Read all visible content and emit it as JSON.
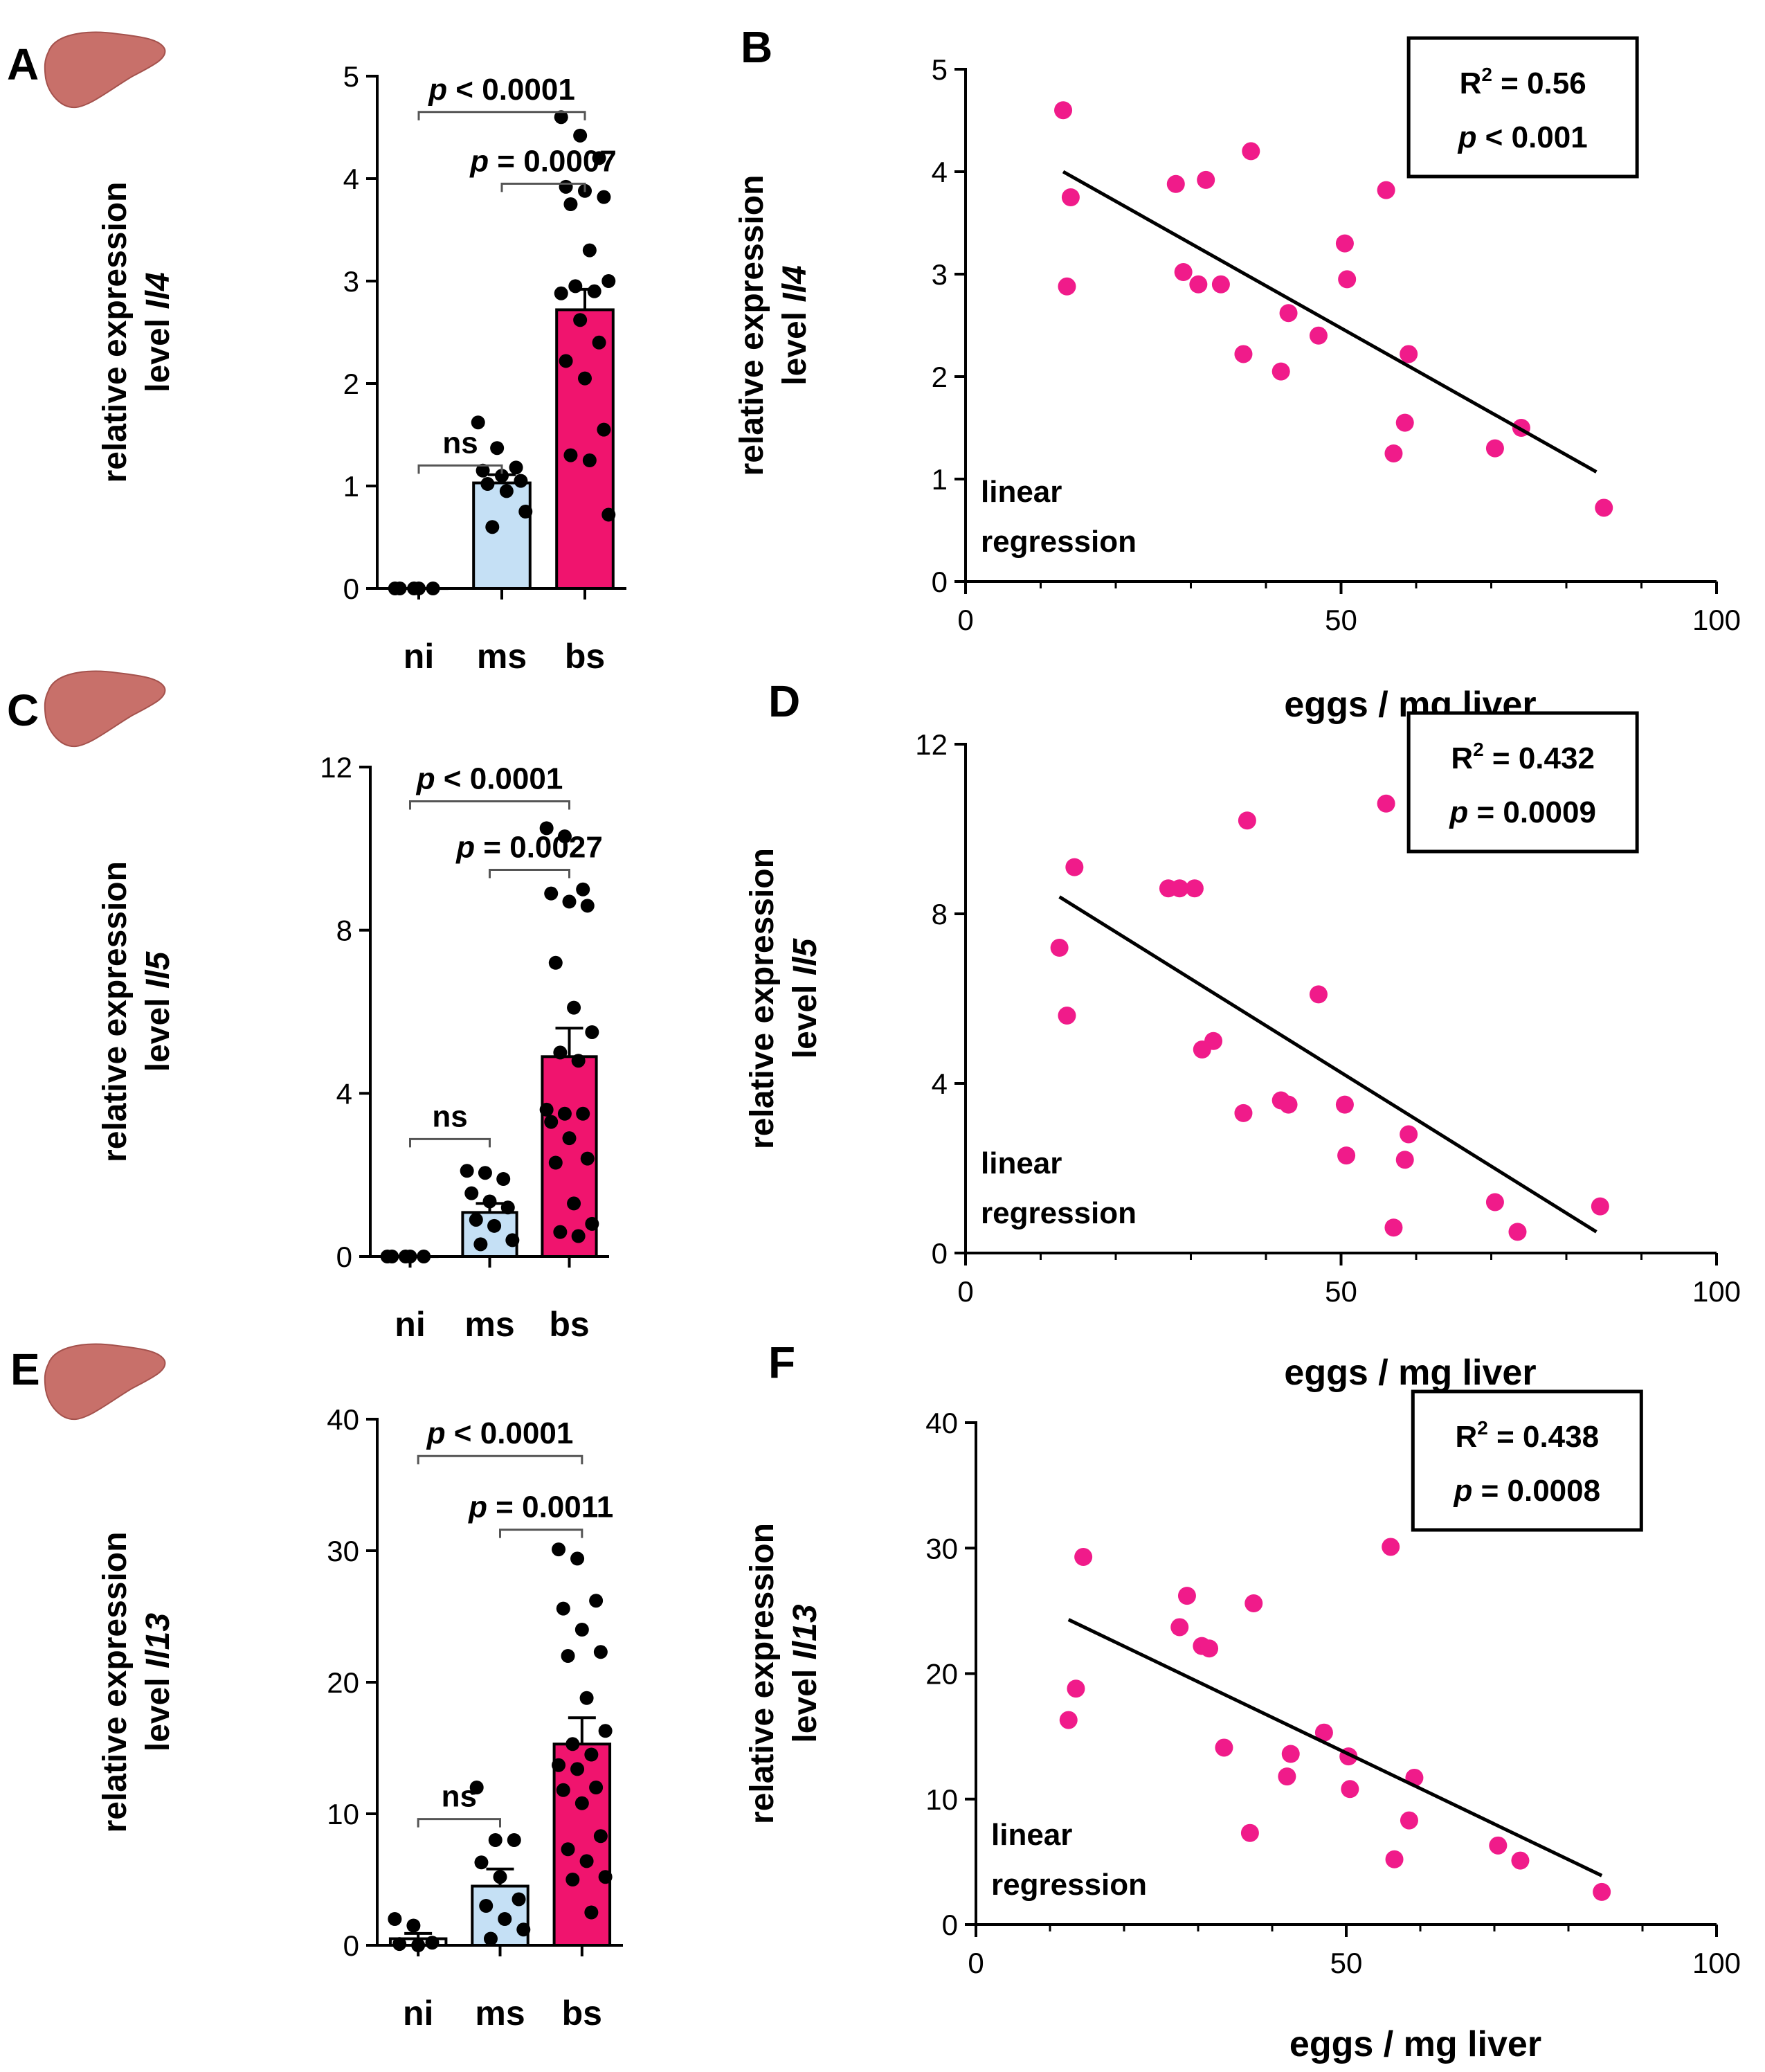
{
  "colors": {
    "ni": "#ffffff",
    "ms": "#c5e0f5",
    "bs": "#f0146e",
    "point": "#f01b8a",
    "liver": "#c8706a"
  },
  "icons": [
    "liver-icon"
  ],
  "chart_data": [
    {
      "panel": "A",
      "type": "bar",
      "ylabel": "relative expression level Il4",
      "ylabel_line1": "relative expression",
      "ylabel_line2_prefix": "level ",
      "ylabel_gene": "Il4",
      "categories": [
        "ni",
        "ms",
        "bs"
      ],
      "values": [
        0.0,
        1.03,
        2.72
      ],
      "sem": [
        0.0,
        0.08,
        0.2
      ],
      "ylim": [
        0,
        5
      ],
      "yticks": [
        0,
        1,
        2,
        3,
        4,
        5
      ],
      "points": [
        [
          0,
          0,
          0,
          0,
          0
        ],
        [
          1.62,
          1.37,
          1.18,
          1.15,
          1.1,
          1.05,
          1.02,
          0.95,
          0.75,
          0.6
        ],
        [
          4.6,
          4.42,
          4.2,
          3.92,
          3.88,
          3.82,
          3.75,
          3.3,
          3.0,
          2.95,
          2.9,
          2.88,
          2.62,
          2.4,
          2.22,
          2.05,
          1.55,
          1.3,
          1.25,
          0.72
        ]
      ],
      "comparisons": [
        {
          "from": 0,
          "to": 1,
          "label": "ns"
        },
        {
          "from": 1,
          "to": 2,
          "label_p": "p",
          "label_rest": " = 0.0007"
        },
        {
          "from": 0,
          "to": 2,
          "label_p": "p",
          "label_rest": " < 0.0001"
        }
      ]
    },
    {
      "panel": "B",
      "type": "scatter",
      "xlabel": "eggs / mg liver",
      "ylabel_line1": "relative expression",
      "ylabel_line2_prefix": "level ",
      "ylabel_gene": "Il4",
      "xlim": [
        0,
        100
      ],
      "ylim": [
        0,
        5
      ],
      "xticks": [
        0,
        50,
        100
      ],
      "yticks": [
        0,
        1,
        2,
        3,
        4,
        5
      ],
      "x": [
        13,
        14,
        13.5,
        28,
        29,
        31,
        32,
        34,
        37,
        38,
        42,
        43,
        47,
        50.5,
        50.8,
        56,
        57,
        58.5,
        59,
        70.5,
        74,
        85
      ],
      "y": [
        4.6,
        3.75,
        2.88,
        3.88,
        3.02,
        2.9,
        3.92,
        2.9,
        2.22,
        4.2,
        2.05,
        2.62,
        2.4,
        3.3,
        2.95,
        3.82,
        1.25,
        1.55,
        2.22,
        1.3,
        1.5,
        0.72
      ],
      "fit": [
        [
          13,
          4.0
        ],
        [
          84,
          1.07
        ]
      ],
      "stat_r": "R",
      "stat_r_rest": " = 0.56",
      "stat_p": "p",
      "stat_p_rest": " < 0.001",
      "note_line1": "linear",
      "note_line2": "regression"
    },
    {
      "panel": "C",
      "type": "bar",
      "ylabel_line1": "relative expression",
      "ylabel_line2_prefix": "level ",
      "ylabel_gene": "Il5",
      "categories": [
        "ni",
        "ms",
        "bs"
      ],
      "values": [
        0.0,
        1.08,
        4.9
      ],
      "sem": [
        0.0,
        0.22,
        0.7
      ],
      "ylim": [
        0,
        12
      ],
      "yticks": [
        0,
        4,
        8,
        12
      ],
      "points": [
        [
          0,
          0,
          0,
          0,
          0
        ],
        [
          2.1,
          2.05,
          1.9,
          1.55,
          1.35,
          1.2,
          0.9,
          0.75,
          0.4,
          0.3
        ],
        [
          10.5,
          10.3,
          9.0,
          8.9,
          8.7,
          8.6,
          7.2,
          6.1,
          5.5,
          5.0,
          4.8,
          3.6,
          3.5,
          3.5,
          3.3,
          2.9,
          2.4,
          2.3,
          1.3,
          0.8,
          0.6,
          0.5
        ]
      ],
      "comparisons": [
        {
          "from": 0,
          "to": 1,
          "label": "ns"
        },
        {
          "from": 1,
          "to": 2,
          "label_p": "p",
          "label_rest": " = 0.0027"
        },
        {
          "from": 0,
          "to": 2,
          "label_p": "p",
          "label_rest": " < 0.0001"
        }
      ]
    },
    {
      "panel": "D",
      "type": "scatter",
      "xlabel": "eggs / mg liver",
      "ylabel_line1": "relative expression",
      "ylabel_line2_prefix": "level ",
      "ylabel_gene": "Il5",
      "xlim": [
        0,
        100
      ],
      "ylim": [
        0,
        12
      ],
      "xticks": [
        0,
        50,
        100
      ],
      "yticks": [
        0,
        4,
        8,
        12
      ],
      "x": [
        12.5,
        13.5,
        14.5,
        27,
        28.5,
        30.5,
        31.5,
        33,
        37,
        37.5,
        42,
        43,
        47,
        50.5,
        50.7,
        56,
        57,
        58.5,
        59,
        70.5,
        73.5,
        84.5
      ],
      "y": [
        7.2,
        5.6,
        9.1,
        8.6,
        8.6,
        8.6,
        4.8,
        5.0,
        3.3,
        10.2,
        3.6,
        3.5,
        6.1,
        3.5,
        2.3,
        10.6,
        0.6,
        2.2,
        2.8,
        1.2,
        0.5,
        1.1
      ],
      "fit": [
        [
          12.5,
          8.4
        ],
        [
          84,
          0.5
        ]
      ],
      "stat_r": "R",
      "stat_r_rest": " = 0.432",
      "stat_p": "p",
      "stat_p_rest": " = 0.0009",
      "note_line1": "linear",
      "note_line2": "regression"
    },
    {
      "panel": "E",
      "type": "bar",
      "ylabel_line1": "relative expression",
      "ylabel_line2_prefix": "level ",
      "ylabel_gene": "Il13",
      "categories": [
        "ni",
        "ms",
        "bs"
      ],
      "values": [
        0.5,
        4.5,
        15.3
      ],
      "sem": [
        0.4,
        1.3,
        2.0
      ],
      "ylim": [
        0,
        40
      ],
      "yticks": [
        0,
        10,
        20,
        30,
        40
      ],
      "points": [
        [
          2.0,
          1.5,
          0.2,
          0.1,
          0.0
        ],
        [
          12.0,
          8.0,
          8.0,
          6.3,
          5.2,
          3.5,
          3.0,
          2.0,
          1.2,
          0.5
        ],
        [
          30.1,
          29.4,
          26.2,
          25.6,
          24.0,
          22.3,
          22.0,
          18.8,
          16.3,
          15.3,
          14.5,
          13.7,
          13.4,
          12.0,
          11.8,
          10.8,
          8.3,
          7.3,
          6.4,
          5.2,
          5.0,
          2.5
        ]
      ],
      "comparisons": [
        {
          "from": 0,
          "to": 1,
          "label": "ns"
        },
        {
          "from": 1,
          "to": 2,
          "label_p": "p",
          "label_rest": " = 0.0011"
        },
        {
          "from": 0,
          "to": 2,
          "label_p": "p",
          "label_rest": " < 0.0001"
        }
      ]
    },
    {
      "panel": "F",
      "type": "scatter",
      "xlabel": "eggs / mg liver",
      "ylabel_line1": "relative expression",
      "ylabel_line2_prefix": "level ",
      "ylabel_gene": "Il13",
      "xlim": [
        0,
        100
      ],
      "ylim": [
        0,
        40
      ],
      "xticks": [
        0,
        50,
        100
      ],
      "yticks": [
        0,
        10,
        20,
        30,
        40
      ],
      "x": [
        12.5,
        13.5,
        14.5,
        27.5,
        28.5,
        30.5,
        31.5,
        33.5,
        37,
        37.5,
        42,
        42.5,
        47,
        50.3,
        50.5,
        56,
        56.5,
        58.5,
        59.2,
        70.5,
        73.5,
        84.5
      ],
      "y": [
        16.3,
        18.8,
        29.3,
        23.7,
        26.2,
        22.2,
        22.0,
        14.1,
        7.3,
        25.6,
        11.8,
        13.6,
        15.3,
        13.4,
        10.8,
        30.1,
        5.2,
        8.3,
        11.7,
        6.3,
        5.1,
        2.6
      ],
      "fit": [
        [
          12.5,
          24.3
        ],
        [
          84.5,
          3.9
        ]
      ],
      "stat_r": "R",
      "stat_r_rest": " = 0.438",
      "stat_p": "p",
      "stat_p_rest": " = 0.0008",
      "note_line1": "linear",
      "note_line2": "regression"
    }
  ]
}
